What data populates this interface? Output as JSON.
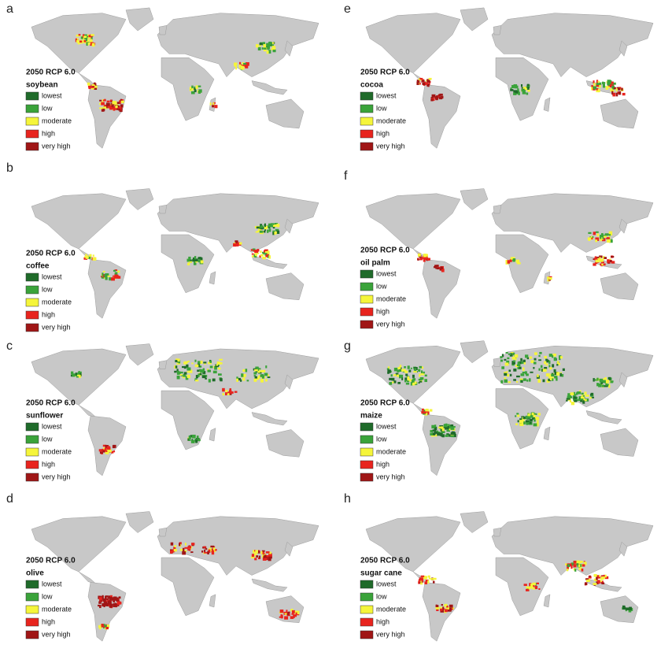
{
  "scenario": "2050 RCP 6.0",
  "legend": [
    {
      "label": "lowest",
      "color": "#1f6b2a"
    },
    {
      "label": "low",
      "color": "#3aa33a"
    },
    {
      "label": "moderate",
      "color": "#f5f53a"
    },
    {
      "label": "high",
      "color": "#e8241e"
    },
    {
      "label": "very high",
      "color": "#a01616"
    }
  ],
  "panels": [
    {
      "letter": "a",
      "crop": "soybean"
    },
    {
      "letter": "b",
      "crop": "coffee"
    },
    {
      "letter": "c",
      "crop": "sunflower"
    },
    {
      "letter": "d",
      "crop": "olive"
    },
    {
      "letter": "e",
      "crop": "cocoa"
    },
    {
      "letter": "f",
      "crop": "oil palm"
    },
    {
      "letter": "g",
      "crop": "maize"
    },
    {
      "letter": "h",
      "crop": "sugar cane"
    }
  ]
}
